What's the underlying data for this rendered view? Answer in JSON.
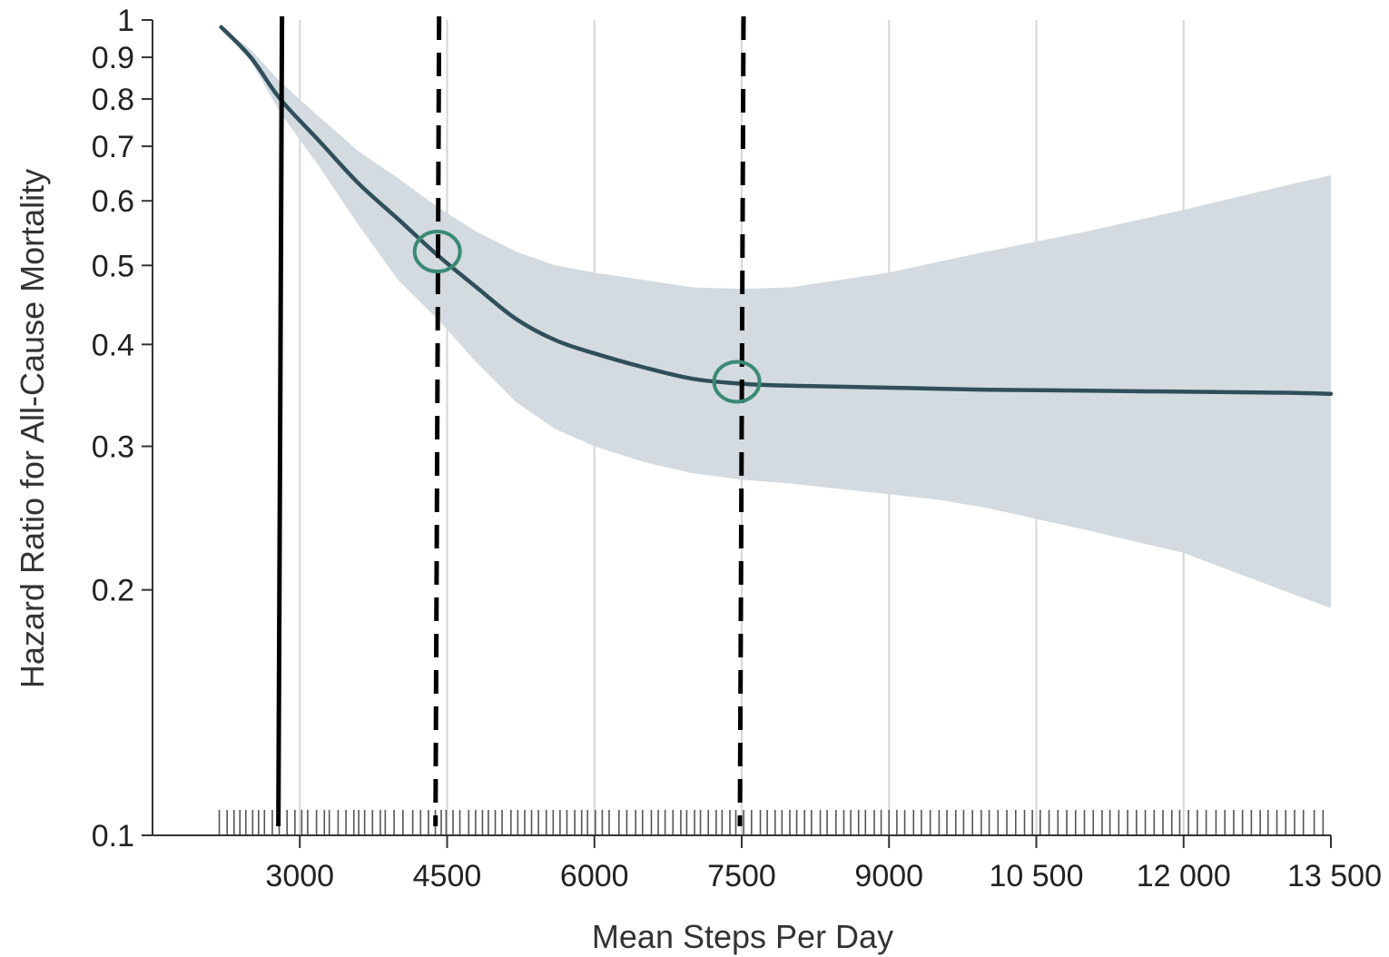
{
  "chart_data": {
    "type": "line",
    "title": "",
    "xlabel": "Mean Steps Per Day",
    "ylabel": "Hazard Ratio for All-Cause Mortality",
    "x_scale": "linear",
    "y_scale": "log",
    "xlim": [
      1500,
      13500
    ],
    "ylim": [
      0.1,
      1
    ],
    "x_ticks": [
      {
        "value": 3000,
        "label": "3000"
      },
      {
        "value": 4500,
        "label": "4500"
      },
      {
        "value": 6000,
        "label": "6000"
      },
      {
        "value": 7500,
        "label": "7500"
      },
      {
        "value": 9000,
        "label": "9000"
      },
      {
        "value": 10500,
        "label": "10 500"
      },
      {
        "value": 12000,
        "label": "12 000"
      },
      {
        "value": 13500,
        "label": "13 500"
      }
    ],
    "y_ticks": [
      {
        "value": 0.1,
        "label": "0.1"
      },
      {
        "value": 0.2,
        "label": "0.2"
      },
      {
        "value": 0.3,
        "label": "0.3"
      },
      {
        "value": 0.4,
        "label": "0.4"
      },
      {
        "value": 0.5,
        "label": "0.5"
      },
      {
        "value": 0.6,
        "label": "0.6"
      },
      {
        "value": 0.7,
        "label": "0.7"
      },
      {
        "value": 0.8,
        "label": "0.8"
      },
      {
        "value": 0.9,
        "label": "0.9"
      },
      {
        "value": 1,
        "label": "1"
      }
    ],
    "grid": "vertical",
    "series": [
      {
        "color": "#2f4f5a",
        "x": [
          2200,
          2500,
          2800,
          3200,
          3600,
          4000,
          4400,
          4800,
          5200,
          5600,
          6000,
          6500,
          7000,
          7500,
          8000,
          8500,
          9000,
          9500,
          10000,
          11000,
          12000,
          13000,
          13500
        ],
        "y": [
          0.98,
          0.9,
          0.8,
          0.71,
          0.63,
          0.57,
          0.515,
          0.47,
          0.43,
          0.405,
          0.39,
          0.375,
          0.363,
          0.358,
          0.356,
          0.355,
          0.354,
          0.353,
          0.352,
          0.351,
          0.35,
          0.349,
          0.348
        ]
      }
    ],
    "confidence_band": {
      "color": "#d3dbe0",
      "x": [
        2200,
        2500,
        2800,
        3200,
        3600,
        4000,
        4400,
        4800,
        5200,
        5600,
        6000,
        6500,
        7000,
        7500,
        8000,
        8500,
        9000,
        9500,
        10000,
        11000,
        12000,
        13000,
        13500
      ],
      "upper": [
        0.98,
        0.92,
        0.84,
        0.76,
        0.69,
        0.64,
        0.59,
        0.55,
        0.52,
        0.5,
        0.49,
        0.48,
        0.47,
        0.468,
        0.47,
        0.48,
        0.49,
        0.505,
        0.52,
        0.55,
        0.585,
        0.625,
        0.645
      ],
      "lower": [
        0.98,
        0.89,
        0.77,
        0.66,
        0.56,
        0.48,
        0.43,
        0.38,
        0.34,
        0.315,
        0.3,
        0.287,
        0.278,
        0.273,
        0.27,
        0.266,
        0.262,
        0.258,
        0.252,
        0.237,
        0.222,
        0.2,
        0.19
      ]
    },
    "vertical_lines": [
      {
        "x": 2800,
        "style": "solid",
        "color": "#000000"
      },
      {
        "x": 4400,
        "style": "dashed",
        "color": "#000000"
      },
      {
        "x": 7500,
        "style": "dashed",
        "color": "#000000"
      }
    ],
    "highlight_circles": [
      {
        "x": 4400,
        "y": 0.52,
        "color": "#3a8a74"
      },
      {
        "x": 7450,
        "y": 0.36,
        "color": "#3a8a74"
      }
    ],
    "rug": {
      "color": "#555555",
      "x": [
        2180,
        2260,
        2330,
        2390,
        2450,
        2520,
        2580,
        2640,
        2720,
        2790,
        2870,
        2950,
        3020,
        3080,
        3170,
        3250,
        3300,
        3390,
        3470,
        3550,
        3600,
        3660,
        3740,
        3820,
        3870,
        3960,
        4050,
        4150,
        4230,
        4310,
        4380,
        4440,
        4490,
        4560,
        4630,
        4720,
        4790,
        4860,
        4920,
        4990,
        5060,
        5150,
        5220,
        5290,
        5360,
        5430,
        5510,
        5580,
        5650,
        5720,
        5800,
        5870,
        5930,
        6010,
        6080,
        6150,
        6250,
        6330,
        6420,
        6490,
        6580,
        6650,
        6720,
        6800,
        6880,
        6940,
        7020,
        7080,
        7160,
        7240,
        7300,
        7380,
        7440,
        7520,
        7600,
        7690,
        7760,
        7840,
        7910,
        7990,
        8060,
        8140,
        8210,
        8300,
        8370,
        8460,
        8540,
        8610,
        8690,
        8760,
        8850,
        8920,
        9000,
        9080,
        9160,
        9250,
        9330,
        9420,
        9510,
        9590,
        9680,
        9760,
        9850,
        9940,
        10020,
        10110,
        10200,
        10290,
        10380,
        10460,
        10540,
        10630,
        10720,
        10810,
        10900,
        10990,
        11080,
        11170,
        11250,
        11340,
        11430,
        11520,
        11610,
        11700,
        11790,
        11880,
        11960,
        12050,
        12140,
        12230,
        12330,
        12420,
        12510,
        12600,
        12690,
        12780,
        12860,
        12950,
        13040,
        13130,
        13220,
        13330,
        13420
      ]
    }
  }
}
